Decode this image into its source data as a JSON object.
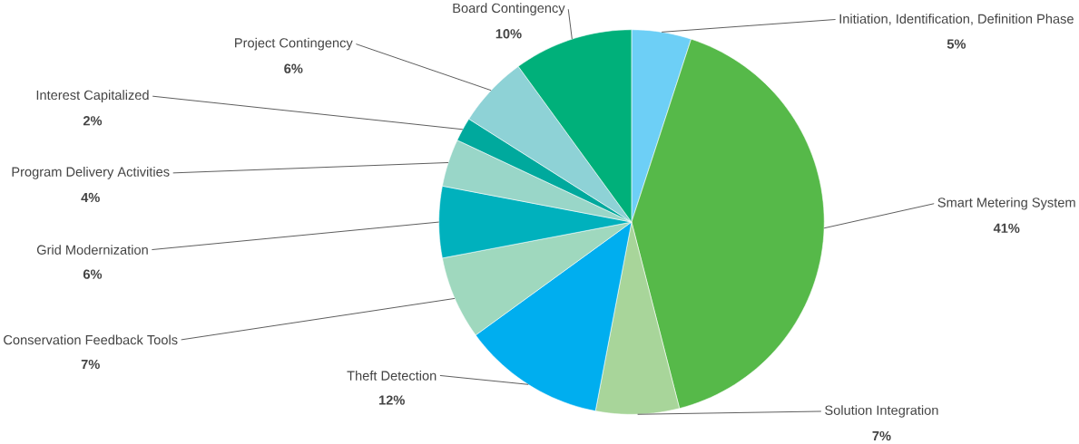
{
  "chart_data": {
    "type": "pie",
    "categories": [
      "Initiation, Identification, Definition Phase",
      "Smart Metering System",
      "Solution Integration",
      "Theft Detection",
      "Conservation Feedback Tools",
      "Grid Modernization",
      "Program Delivery Activities",
      "Interest Capitalized",
      "Project Contingency",
      "Board Contingency"
    ],
    "values": [
      5,
      41,
      7,
      12,
      7,
      6,
      4,
      2,
      6,
      10
    ],
    "value_labels": [
      "5%",
      "41%",
      "7%",
      "12%",
      "7%",
      "6%",
      "4%",
      "2%",
      "6%",
      "10%"
    ],
    "colors": [
      "#6dcff6",
      "#56b949",
      "#a8d59a",
      "#00aeef",
      "#9fd8be",
      "#00b1bd",
      "#99d6c8",
      "#00a99d",
      "#8ed2d6",
      "#00b07a"
    ]
  }
}
